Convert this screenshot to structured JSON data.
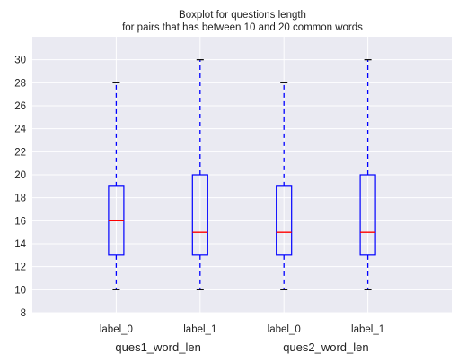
{
  "chart_data": {
    "type": "boxplot",
    "title": "Boxplot for questions length\nfor pairs that has between 10 and 20 common words",
    "title_lines": [
      "Boxplot for questions length",
      "for pairs that has between 10 and 20 common words"
    ],
    "xlabel": "",
    "ylabel": "",
    "ylim": [
      8,
      32
    ],
    "yticks": [
      8,
      10,
      12,
      14,
      16,
      18,
      20,
      22,
      24,
      26,
      28,
      30
    ],
    "grid": true,
    "groups": [
      "ques1_word_len",
      "ques2_word_len"
    ],
    "boxes": [
      {
        "group": "ques1_word_len",
        "label": "label_0",
        "whisker_low": 10,
        "q1": 13,
        "median": 16,
        "q3": 19,
        "whisker_high": 28
      },
      {
        "group": "ques1_word_len",
        "label": "label_1",
        "whisker_low": 10,
        "q1": 13,
        "median": 15,
        "q3": 20,
        "whisker_high": 30
      },
      {
        "group": "ques2_word_len",
        "label": "label_0",
        "whisker_low": 10,
        "q1": 13,
        "median": 15,
        "q3": 19,
        "whisker_high": 28
      },
      {
        "group": "ques2_word_len",
        "label": "label_1",
        "whisker_low": 10,
        "q1": 13,
        "median": 15,
        "q3": 20,
        "whisker_high": 30
      }
    ],
    "colors": {
      "background": "#eaeaf2",
      "grid": "#ffffff",
      "box": "#0000ff",
      "whisker": "#0000ff",
      "median": "#ff0000",
      "cap": "#000000"
    }
  }
}
